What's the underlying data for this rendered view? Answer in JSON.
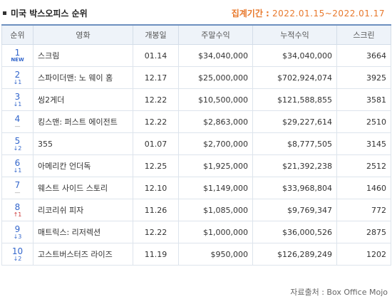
{
  "header": {
    "title": "미국 박스오피스 순위",
    "period_label": "집계기간 :",
    "period_value": "2022.01.15~2022.01.17"
  },
  "columns": [
    "순위",
    "영화",
    "개봉일",
    "주말수익",
    "누적수익",
    "스크린"
  ],
  "rows": [
    {
      "rank": "1",
      "change": "NEW",
      "change_dir": "new",
      "title": "스크림",
      "release": "01.14",
      "weekend": "$34,040,000",
      "total": "$34,040,000",
      "screens": "3664"
    },
    {
      "rank": "2",
      "change": "↓1",
      "change_dir": "down",
      "title": "스파이더맨: 노 웨이 홈",
      "release": "12.17",
      "weekend": "$25,000,000",
      "total": "$702,924,074",
      "screens": "3925"
    },
    {
      "rank": "3",
      "change": "↓1",
      "change_dir": "down",
      "title": "씽2게더",
      "release": "12.22",
      "weekend": "$10,500,000",
      "total": "$121,588,855",
      "screens": "3581"
    },
    {
      "rank": "4",
      "change": "—",
      "change_dir": "same",
      "title": "킹스맨: 퍼스트 에이전트",
      "release": "12.22",
      "weekend": "$2,863,000",
      "total": "$29,227,614",
      "screens": "2510"
    },
    {
      "rank": "5",
      "change": "↓2",
      "change_dir": "down",
      "title": "355",
      "release": "01.07",
      "weekend": "$2,700,000",
      "total": "$8,777,505",
      "screens": "3145"
    },
    {
      "rank": "6",
      "change": "↓1",
      "change_dir": "down",
      "title": "아메리칸 언더독",
      "release": "12.25",
      "weekend": "$1,925,000",
      "total": "$21,392,238",
      "screens": "2512"
    },
    {
      "rank": "7",
      "change": "—",
      "change_dir": "same",
      "title": "웨스트 사이드 스토리",
      "release": "12.10",
      "weekend": "$1,149,000",
      "total": "$33,968,804",
      "screens": "1460"
    },
    {
      "rank": "8",
      "change": "↑1",
      "change_dir": "up",
      "title": "리코리쉬 피자",
      "release": "11.26",
      "weekend": "$1,085,000",
      "total": "$9,769,347",
      "screens": "772"
    },
    {
      "rank": "9",
      "change": "↓3",
      "change_dir": "down",
      "title": "매트릭스: 리저렉션",
      "release": "12.22",
      "weekend": "$1,000,000",
      "total": "$36,000,526",
      "screens": "2875"
    },
    {
      "rank": "10",
      "change": "↓2",
      "change_dir": "down",
      "title": "고스트버스터즈 라이즈",
      "release": "11.19",
      "weekend": "$950,000",
      "total": "$126,289,249",
      "screens": "1202"
    }
  ],
  "footer": {
    "source": "자료출처 : Box Office Mojo"
  },
  "colors": {
    "accent_orange": "#e8782b",
    "rank_blue": "#3366cc",
    "rank_up_red": "#cc3333",
    "header_bg": "#eef3f9"
  }
}
